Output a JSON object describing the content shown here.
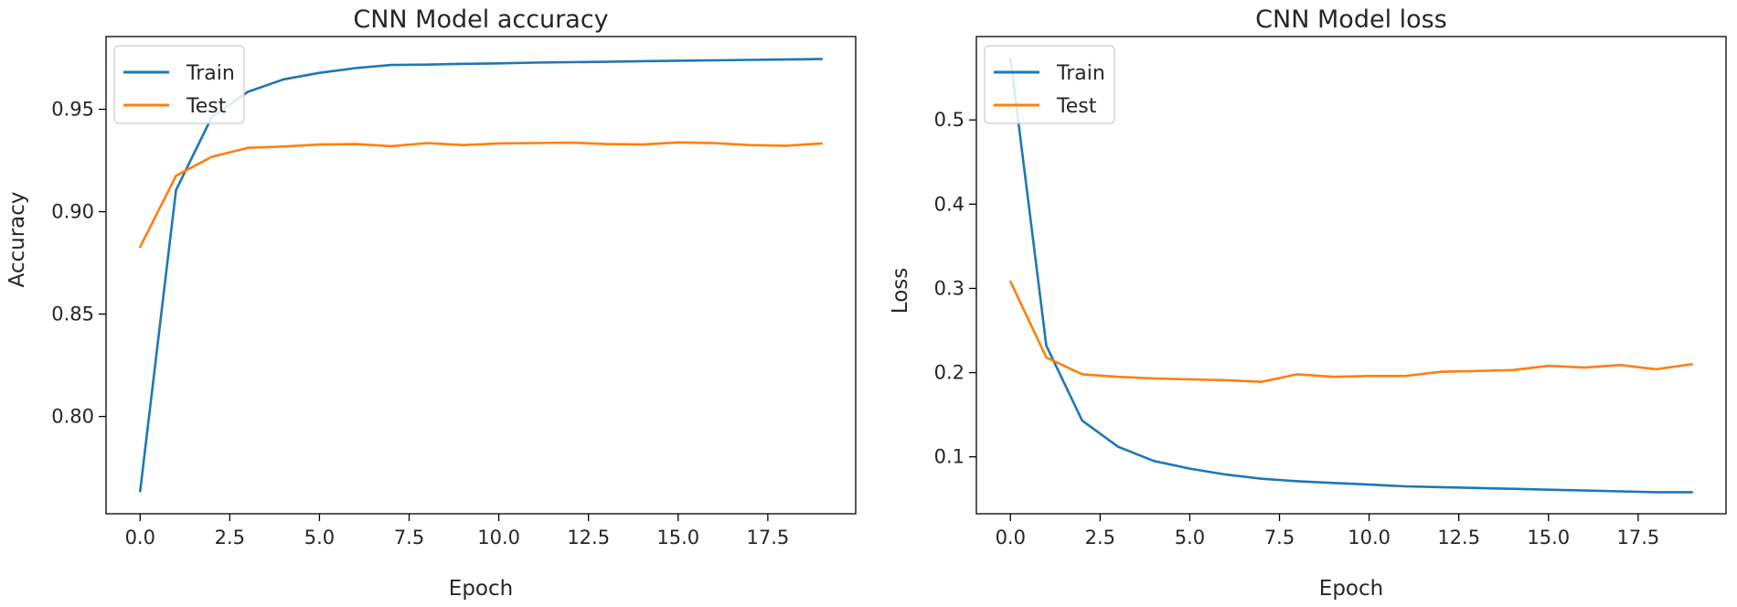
{
  "chart_data": [
    {
      "type": "line",
      "title": "CNN Model accuracy",
      "xlabel": "Epoch",
      "ylabel": "Accuracy",
      "xlim": [
        -0.95,
        19.95
      ],
      "ylim": [
        0.7525,
        0.9855
      ],
      "xticks": [
        0,
        2.5,
        5,
        7.5,
        10,
        12.5,
        15,
        17.5
      ],
      "xtick_labels": [
        "0.0",
        "2.5",
        "5.0",
        "7.5",
        "10.0",
        "12.5",
        "15.0",
        "17.5"
      ],
      "yticks": [
        0.8,
        0.85,
        0.9,
        0.95
      ],
      "ytick_labels": [
        "0.80",
        "0.85",
        "0.90",
        "0.95"
      ],
      "legend_position": "upper-left",
      "x": [
        0,
        1,
        2,
        3,
        4,
        5,
        6,
        7,
        8,
        9,
        10,
        11,
        12,
        13,
        14,
        15,
        16,
        17,
        18,
        19
      ],
      "series": [
        {
          "name": "Train",
          "color": "#1f77b4",
          "values": [
            0.7635,
            0.9105,
            0.9462,
            0.9585,
            0.9646,
            0.9678,
            0.9701,
            0.9716,
            0.9718,
            0.9722,
            0.9724,
            0.9728,
            0.973,
            0.9732,
            0.9735,
            0.9737,
            0.9739,
            0.9741,
            0.9743,
            0.9745
          ]
        },
        {
          "name": "Test",
          "color": "#ff7f0e",
          "values": [
            0.8828,
            0.9175,
            0.9268,
            0.9312,
            0.9318,
            0.9328,
            0.933,
            0.932,
            0.9335,
            0.9325,
            0.9333,
            0.9335,
            0.9337,
            0.933,
            0.9328,
            0.9338,
            0.9335,
            0.9325,
            0.9322,
            0.9333
          ]
        }
      ]
    },
    {
      "type": "line",
      "title": "CNN Model loss",
      "xlabel": "Epoch",
      "ylabel": "Loss",
      "xlim": [
        -0.95,
        19.95
      ],
      "ylim": [
        0.0324,
        0.599
      ],
      "xticks": [
        0,
        2.5,
        5,
        7.5,
        10,
        12.5,
        15,
        17.5
      ],
      "xtick_labels": [
        "0.0",
        "2.5",
        "5.0",
        "7.5",
        "10.0",
        "12.5",
        "15.0",
        "17.5"
      ],
      "yticks": [
        0.1,
        0.2,
        0.3,
        0.4,
        0.5
      ],
      "ytick_labels": [
        "0.1",
        "0.2",
        "0.3",
        "0.4",
        "0.5"
      ],
      "legend_position": "upper-left",
      "x": [
        0,
        1,
        2,
        3,
        4,
        5,
        6,
        7,
        8,
        9,
        10,
        11,
        12,
        13,
        14,
        15,
        16,
        17,
        18,
        19
      ],
      "series": [
        {
          "name": "Train",
          "color": "#1f77b4",
          "values": [
            0.573,
            0.232,
            0.143,
            0.112,
            0.095,
            0.086,
            0.079,
            0.074,
            0.071,
            0.069,
            0.067,
            0.065,
            0.064,
            0.063,
            0.062,
            0.061,
            0.06,
            0.059,
            0.058,
            0.058
          ]
        },
        {
          "name": "Test",
          "color": "#ff7f0e",
          "values": [
            0.308,
            0.218,
            0.198,
            0.195,
            0.193,
            0.192,
            0.191,
            0.189,
            0.198,
            0.195,
            0.196,
            0.196,
            0.201,
            0.202,
            0.203,
            0.208,
            0.206,
            0.209,
            0.204,
            0.21
          ]
        }
      ]
    }
  ]
}
